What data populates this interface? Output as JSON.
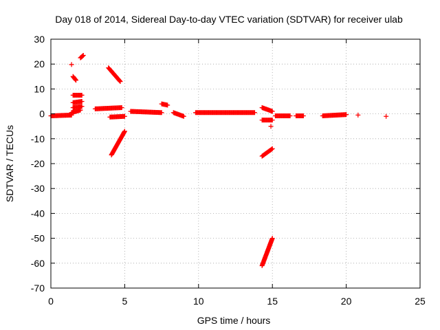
{
  "chart_data": {
    "type": "scatter",
    "title": "Day 018 of 2014, Sidereal Day-to-day VTEC variation (SDTVAR) for receiver ulab",
    "xlabel": "GPS time / hours",
    "ylabel": "SDTVAR / TECUs",
    "xlim": [
      0,
      25
    ],
    "ylim": [
      -70,
      30
    ],
    "x_ticks": [
      "0",
      "5",
      "10",
      "15",
      "20",
      "25"
    ],
    "y_ticks": [
      "30",
      "20",
      "10",
      "0",
      "-10",
      "-20",
      "-30",
      "-40",
      "-50",
      "-60",
      "-70"
    ],
    "grid": true,
    "marker": "plus",
    "color": "#ff0000",
    "series": [
      {
        "name": "SDTVAR",
        "segments": [
          {
            "x": [
              0.0,
              1.4
            ],
            "y": [
              -0.8,
              -0.5
            ]
          },
          {
            "x": [
              1.4,
              2.0
            ],
            "y": [
              0.5,
              1.5
            ]
          },
          {
            "x": [
              1.5,
              2.1
            ],
            "y": [
              7.5,
              7.5
            ]
          },
          {
            "x": [
              1.5,
              2.1
            ],
            "y": [
              4.5,
              5.0
            ]
          },
          {
            "x": [
              1.5,
              2.1
            ],
            "y": [
              2.5,
              3.0
            ]
          },
          {
            "x": [
              1.5,
              1.7
            ],
            "y": [
              15.0,
              13.5
            ]
          },
          {
            "x": [
              2.0,
              2.2
            ],
            "y": [
              22.5,
              23.5
            ]
          },
          {
            "x": [
              3.0,
              4.8
            ],
            "y": [
              2.0,
              2.5
            ]
          },
          {
            "x": [
              3.9,
              4.7
            ],
            "y": [
              18.5,
              13.0
            ]
          },
          {
            "x": [
              4.1,
              5.0
            ],
            "y": [
              -16.5,
              -7.0
            ]
          },
          {
            "x": [
              4.0,
              5.0
            ],
            "y": [
              -1.3,
              -1.0
            ]
          },
          {
            "x": [
              5.4,
              7.5
            ],
            "y": [
              1.0,
              0.5
            ]
          },
          {
            "x": [
              7.5,
              7.9
            ],
            "y": [
              4.0,
              3.5
            ]
          },
          {
            "x": [
              8.3,
              9.0
            ],
            "y": [
              0.5,
              -1.0
            ]
          },
          {
            "x": [
              9.8,
              13.8
            ],
            "y": [
              0.5,
              0.5
            ]
          },
          {
            "x": [
              14.3,
              15.0
            ],
            "y": [
              2.5,
              1.0
            ]
          },
          {
            "x": [
              14.3,
              15.0
            ],
            "y": [
              -2.5,
              -2.5
            ]
          },
          {
            "x": [
              14.3,
              15.0
            ],
            "y": [
              -17.0,
              -14.0
            ]
          },
          {
            "x": [
              14.3,
              15.0
            ],
            "y": [
              -61.0,
              -50.0
            ]
          },
          {
            "x": [
              15.2,
              16.2
            ],
            "y": [
              -0.8,
              -0.8
            ]
          },
          {
            "x": [
              16.6,
              17.1
            ],
            "y": [
              -0.8,
              -0.8
            ]
          },
          {
            "x": [
              18.4,
              20.0
            ],
            "y": [
              -0.8,
              -0.3
            ]
          }
        ],
        "points": [
          {
            "x": 1.4,
            "y": 19.8
          },
          {
            "x": 14.9,
            "y": -5.0
          },
          {
            "x": 20.8,
            "y": -0.5
          },
          {
            "x": 22.7,
            "y": -1.0
          }
        ]
      }
    ]
  }
}
